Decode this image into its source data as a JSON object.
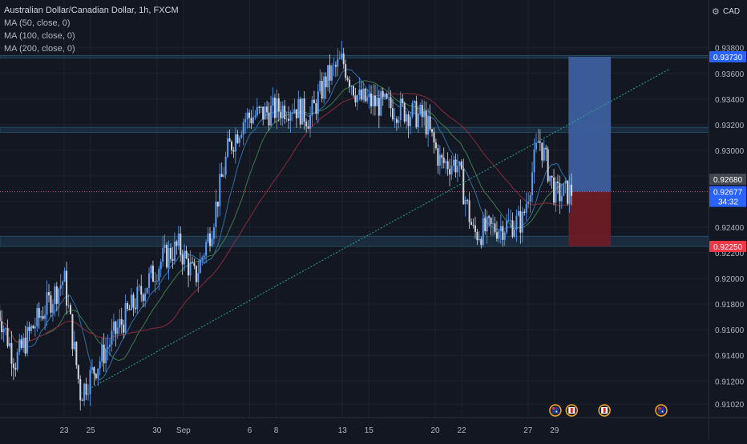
{
  "header": {
    "symbol": "Australian Dollar/Canadian Dollar, 1h, FXCM",
    "indicators": [
      "MA (50, close, 0)",
      "MA (100, close, 0)",
      "MA (200, close, 0)"
    ],
    "currency": "CAD"
  },
  "colors": {
    "background": "#131722",
    "grid": "#1e222d",
    "bull": "#5b9cf6",
    "bear": "#d1d4dc",
    "ma50": "#2f6fa8",
    "ma100": "#3d7a4c",
    "ma200": "#8a2b3c",
    "trendline": "#26a69a",
    "zone": "#1f3d52",
    "profit": "#3c5f9e",
    "loss": "#6b1c26",
    "target_badge": "#2962ff",
    "stop_badge": "#f23645",
    "last_badge": "#2962ff",
    "prev_close_badge": "#434651"
  },
  "chart_data": {
    "type": "candlestick",
    "title": "Australian Dollar/Canadian Dollar, 1h, FXCM",
    "x_tick_labels": [
      "23",
      "25",
      "30",
      "Sep",
      "6",
      "8",
      "13",
      "15",
      "20",
      "22",
      "27",
      "29"
    ],
    "y_tick_labels": [
      "0.93800",
      "0.93600",
      "0.93400",
      "0.93200",
      "0.93000",
      "0.92800",
      "0.92600",
      "0.92400",
      "0.92200",
      "0.92000",
      "0.91800",
      "0.91600",
      "0.91400",
      "0.91200",
      "0.91020"
    ],
    "ylim": [
      0.9098,
      0.9392
    ],
    "price_path_key_points": [
      {
        "date": "Aug 19",
        "price": 0.9175
      },
      {
        "date": "Aug 20",
        "price": 0.9135
      },
      {
        "date": "Aug 21",
        "price": 0.916
      },
      {
        "date": "Aug 23",
        "price": 0.92
      },
      {
        "date": "Aug 24",
        "price": 0.911
      },
      {
        "date": "Aug 26",
        "price": 0.9155
      },
      {
        "date": "Aug 27",
        "price": 0.9175
      },
      {
        "date": "Aug 29",
        "price": 0.9215
      },
      {
        "date": "Aug 30",
        "price": 0.9225
      },
      {
        "date": "Aug 31",
        "price": 0.92
      },
      {
        "date": "Sep 1",
        "price": 0.924
      },
      {
        "date": "Sep 2",
        "price": 0.93
      },
      {
        "date": "Sep 3",
        "price": 0.9325
      },
      {
        "date": "Sep 6",
        "price": 0.9335
      },
      {
        "date": "Sep 7",
        "price": 0.9325
      },
      {
        "date": "Sep 8",
        "price": 0.9355
      },
      {
        "date": "Sep 9",
        "price": 0.937
      },
      {
        "date": "Sep 10",
        "price": 0.934
      },
      {
        "date": "Sep 13",
        "price": 0.933
      },
      {
        "date": "Sep 14",
        "price": 0.9325
      },
      {
        "date": "Sep 15",
        "price": 0.929
      },
      {
        "date": "Sep 16",
        "price": 0.929
      },
      {
        "date": "Sep 17",
        "price": 0.9235
      },
      {
        "date": "Sep 20",
        "price": 0.9245
      },
      {
        "date": "Sep 21",
        "price": 0.931
      },
      {
        "date": "Sep 22",
        "price": 0.9265
      },
      {
        "date": "Sep 23",
        "price": 0.92677
      }
    ],
    "moving_averages": [
      {
        "name": "MA (50, close, 0)",
        "color": "#2f6fa8"
      },
      {
        "name": "MA (100, close, 0)",
        "color": "#3d7a4c"
      },
      {
        "name": "MA (200, close, 0)",
        "color": "#8a2b3c"
      }
    ],
    "trendline": {
      "from": {
        "date": "Aug 24",
        "price": 0.911
      },
      "to": {
        "date": "Sep 29",
        "price": 0.93
      }
    },
    "zones": [
      {
        "from": 0.9372,
        "to": 0.9374
      },
      {
        "from": 0.9314,
        "to": 0.9318
      },
      {
        "from": 0.9225,
        "to": 0.9233
      }
    ],
    "position": {
      "type": "long",
      "entry": 0.92677,
      "target": 0.9373,
      "stop": 0.9225,
      "from": "Sep 23",
      "to": "Sep 25"
    },
    "price_labels": {
      "target": "0.93730",
      "prev_close": "0.92680",
      "last": "0.92677",
      "countdown": "34:32",
      "stop": "0.92250"
    },
    "event_markers": [
      {
        "date": "Sep 22",
        "flag": "australia"
      },
      {
        "date": "Sep 23",
        "flag": "canada"
      },
      {
        "date": "Sep 25",
        "flag": "canada"
      },
      {
        "date": "Sep 27",
        "flag": "australia"
      }
    ]
  }
}
